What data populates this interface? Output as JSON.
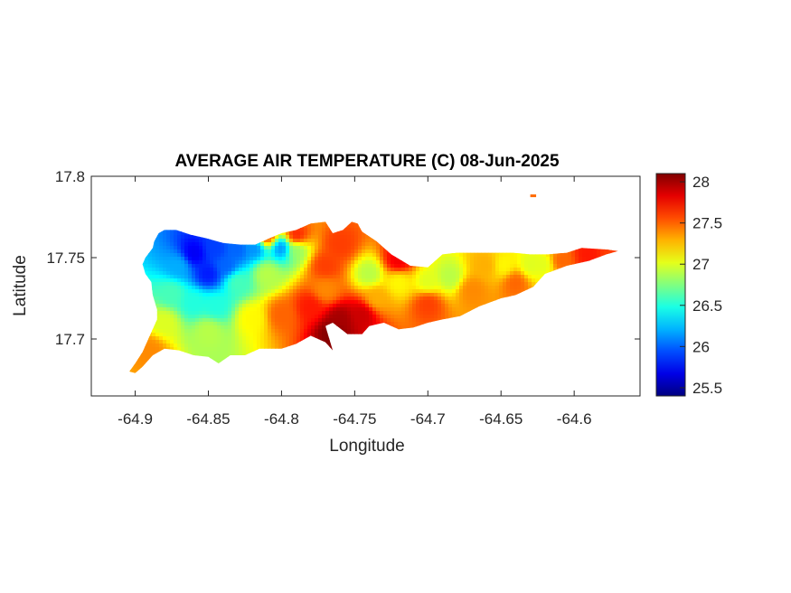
{
  "chart_data": {
    "type": "heatmap",
    "title": "AVERAGE AIR TEMPERATURE (C) 08-Jun-2025",
    "xlabel": "Longitude",
    "ylabel": "Latitude",
    "xlim": [
      -64.93,
      -64.555
    ],
    "ylim": [
      17.665,
      17.8
    ],
    "xticks": [
      -64.9,
      -64.85,
      -64.8,
      -64.75,
      -64.7,
      -64.65,
      -64.6
    ],
    "xtick_labels": [
      "-64.9",
      "-64.85",
      "-64.8",
      "-64.75",
      "-64.7",
      "-64.65",
      "-64.6"
    ],
    "yticks": [
      17.7,
      17.75,
      17.8
    ],
    "ytick_labels": [
      "17.7",
      "17.75",
      "17.8"
    ],
    "colorbar": {
      "colormap": "jet",
      "range": [
        25.4,
        28.1
      ],
      "ticks": [
        25.5,
        26,
        26.5,
        27,
        27.5,
        28
      ],
      "tick_labels": [
        "25.5",
        "26",
        "26.5",
        "27",
        "27.5",
        "28"
      ]
    },
    "grid": false,
    "outline": [
      [
        -64.9,
        17.679
      ],
      [
        -64.895,
        17.683
      ],
      [
        -64.888,
        17.69
      ],
      [
        -64.88,
        17.694
      ],
      [
        -64.87,
        17.693
      ],
      [
        -64.86,
        17.69
      ],
      [
        -64.85,
        17.689
      ],
      [
        -64.843,
        17.685
      ],
      [
        -64.835,
        17.69
      ],
      [
        -64.825,
        17.69
      ],
      [
        -64.815,
        17.694
      ],
      [
        -64.8,
        17.694
      ],
      [
        -64.79,
        17.697
      ],
      [
        -64.78,
        17.702
      ],
      [
        -64.77,
        17.698
      ],
      [
        -64.765,
        17.693
      ],
      [
        -64.768,
        17.702
      ],
      [
        -64.77,
        17.708
      ],
      [
        -64.765,
        17.71
      ],
      [
        -64.755,
        17.703
      ],
      [
        -64.745,
        17.703
      ],
      [
        -64.74,
        17.708
      ],
      [
        -64.73,
        17.71
      ],
      [
        -64.72,
        17.706
      ],
      [
        -64.71,
        17.707
      ],
      [
        -64.7,
        17.71
      ],
      [
        -64.69,
        17.712
      ],
      [
        -64.678,
        17.714
      ],
      [
        -64.665,
        17.72
      ],
      [
        -64.65,
        17.725
      ],
      [
        -64.64,
        17.727
      ],
      [
        -64.628,
        17.732
      ],
      [
        -64.62,
        17.74
      ],
      [
        -64.605,
        17.745
      ],
      [
        -64.59,
        17.748
      ],
      [
        -64.578,
        17.752
      ],
      [
        -64.57,
        17.754
      ],
      [
        -64.578,
        17.755
      ],
      [
        -64.595,
        17.756
      ],
      [
        -64.605,
        17.753
      ],
      [
        -64.618,
        17.752
      ],
      [
        -64.63,
        17.752
      ],
      [
        -64.642,
        17.753
      ],
      [
        -64.66,
        17.753
      ],
      [
        -64.68,
        17.753
      ],
      [
        -64.69,
        17.752
      ],
      [
        -64.7,
        17.744
      ],
      [
        -64.712,
        17.745
      ],
      [
        -64.725,
        17.752
      ],
      [
        -64.735,
        17.76
      ],
      [
        -64.745,
        17.766
      ],
      [
        -64.748,
        17.771
      ],
      [
        -64.752,
        17.772
      ],
      [
        -64.758,
        17.767
      ],
      [
        -64.765,
        17.765
      ],
      [
        -64.77,
        17.772
      ],
      [
        -64.78,
        17.771
      ],
      [
        -64.79,
        17.767
      ],
      [
        -64.8,
        17.765
      ],
      [
        -64.808,
        17.762
      ],
      [
        -64.818,
        17.758
      ],
      [
        -64.828,
        17.758
      ],
      [
        -64.84,
        17.759
      ],
      [
        -64.852,
        17.762
      ],
      [
        -64.862,
        17.764
      ],
      [
        -64.872,
        17.767
      ],
      [
        -64.88,
        17.767
      ],
      [
        -64.884,
        17.765
      ],
      [
        -64.887,
        17.76
      ],
      [
        -64.888,
        17.756
      ],
      [
        -64.893,
        17.75
      ],
      [
        -64.895,
        17.746
      ],
      [
        -64.893,
        17.74
      ],
      [
        -64.889,
        17.735
      ],
      [
        -64.888,
        17.727
      ],
      [
        -64.885,
        17.718
      ],
      [
        -64.885,
        17.712
      ],
      [
        -64.89,
        17.702
      ],
      [
        -64.895,
        17.692
      ],
      [
        -64.9,
        17.685
      ],
      [
        -64.904,
        17.68
      ]
    ],
    "islet": [
      [
        -64.63,
        17.788
      ],
      [
        -64.626,
        17.788
      ]
    ],
    "samples": [
      {
        "lon": -64.86,
        "lat": 17.752,
        "t": 25.7
      },
      {
        "lon": -64.85,
        "lat": 17.74,
        "t": 25.8
      },
      {
        "lon": -64.845,
        "lat": 17.755,
        "t": 25.9
      },
      {
        "lon": -64.87,
        "lat": 17.745,
        "t": 26.2
      },
      {
        "lon": -64.838,
        "lat": 17.745,
        "t": 26.0
      },
      {
        "lon": -64.83,
        "lat": 17.755,
        "t": 26.0
      },
      {
        "lon": -64.818,
        "lat": 17.756,
        "t": 26.1
      },
      {
        "lon": -64.8,
        "lat": 17.756,
        "t": 26.1
      },
      {
        "lon": -64.875,
        "lat": 17.728,
        "t": 26.6
      },
      {
        "lon": -64.86,
        "lat": 17.722,
        "t": 26.5
      },
      {
        "lon": -64.845,
        "lat": 17.72,
        "t": 26.5
      },
      {
        "lon": -64.83,
        "lat": 17.735,
        "t": 26.6
      },
      {
        "lon": -64.81,
        "lat": 17.74,
        "t": 26.9
      },
      {
        "lon": -64.79,
        "lat": 17.755,
        "t": 26.8
      },
      {
        "lon": -64.88,
        "lat": 17.71,
        "t": 27.0
      },
      {
        "lon": -64.85,
        "lat": 17.705,
        "t": 26.9
      },
      {
        "lon": -64.82,
        "lat": 17.713,
        "t": 27.1
      },
      {
        "lon": -64.89,
        "lat": 17.693,
        "t": 27.4
      },
      {
        "lon": -64.8,
        "lat": 17.715,
        "t": 27.5
      },
      {
        "lon": -64.78,
        "lat": 17.72,
        "t": 27.7
      },
      {
        "lon": -64.77,
        "lat": 17.745,
        "t": 27.6
      },
      {
        "lon": -64.76,
        "lat": 17.758,
        "t": 27.6
      },
      {
        "lon": -64.81,
        "lat": 17.763,
        "t": 27.6
      },
      {
        "lon": -64.79,
        "lat": 17.763,
        "t": 27.7
      },
      {
        "lon": -64.74,
        "lat": 17.74,
        "t": 26.9
      },
      {
        "lon": -64.72,
        "lat": 17.735,
        "t": 27.1
      },
      {
        "lon": -64.7,
        "lat": 17.735,
        "t": 27.0
      },
      {
        "lon": -64.685,
        "lat": 17.738,
        "t": 26.9
      },
      {
        "lon": -64.76,
        "lat": 17.712,
        "t": 28.0
      },
      {
        "lon": -64.765,
        "lat": 17.704,
        "t": 28.1
      },
      {
        "lon": -64.745,
        "lat": 17.715,
        "t": 27.9
      },
      {
        "lon": -64.72,
        "lat": 17.748,
        "t": 27.8
      },
      {
        "lon": -64.7,
        "lat": 17.722,
        "t": 27.6
      },
      {
        "lon": -64.67,
        "lat": 17.73,
        "t": 27.4
      },
      {
        "lon": -64.66,
        "lat": 17.745,
        "t": 27.3
      },
      {
        "lon": -64.648,
        "lat": 17.745,
        "t": 27.1
      },
      {
        "lon": -64.63,
        "lat": 17.745,
        "t": 27.0
      },
      {
        "lon": -64.62,
        "lat": 17.746,
        "t": 27.0
      },
      {
        "lon": -64.64,
        "lat": 17.735,
        "t": 27.5
      },
      {
        "lon": -64.61,
        "lat": 17.748,
        "t": 27.5
      },
      {
        "lon": -64.59,
        "lat": 17.752,
        "t": 27.7
      },
      {
        "lon": -64.575,
        "lat": 17.754,
        "t": 27.6
      },
      {
        "lon": -64.77,
        "lat": 17.73,
        "t": 27.4
      },
      {
        "lon": -64.735,
        "lat": 17.725,
        "t": 27.3
      }
    ]
  }
}
